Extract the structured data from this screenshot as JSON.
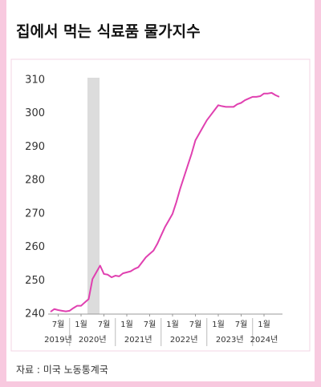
{
  "chart_data": {
    "type": "line",
    "title": "집에서 먹는 식료품 물가지수",
    "source": "자료 : 미국 노동통계국",
    "categories": [
      null,
      null,
      "7월",
      null,
      null,
      null,
      null,
      null,
      "1월",
      null,
      null,
      null,
      null,
      null,
      "7월",
      null,
      null,
      null,
      null,
      null,
      "1월",
      null,
      null,
      null,
      null,
      null,
      "7월",
      null,
      null,
      null,
      null,
      null,
      "1월",
      null,
      null,
      null,
      null,
      null,
      "7월",
      null,
      null,
      null,
      null,
      null,
      "1월",
      null,
      null,
      null,
      null,
      null,
      "7월",
      null,
      null,
      null,
      null,
      null,
      "1월",
      null,
      null,
      null,
      null
    ],
    "years": [
      "2019년",
      "2020년",
      "2021년",
      "2022년",
      "2023년",
      "2024년"
    ],
    "series": [
      {
        "color": "#e040b0",
        "values": [
          240.7,
          241.5,
          241.2,
          241.0,
          240.8,
          241.0,
          241.8,
          242.5,
          242.5,
          243.5,
          244.5,
          250.5,
          252.5,
          254.5,
          252,
          251.8,
          251,
          251.5,
          251.3,
          252.2,
          252.5,
          252.8,
          253.5,
          254,
          255.5,
          257,
          258,
          259,
          261,
          263.5,
          266,
          268,
          270,
          273.5,
          277.5,
          281,
          284.5,
          288,
          292,
          294,
          296,
          298,
          299.5,
          301,
          302.5,
          302.2,
          302,
          302,
          302,
          302.8,
          303.2,
          304,
          304.5,
          305,
          305,
          305.2,
          306,
          306,
          306.2,
          305.5,
          305
        ]
      }
    ],
    "ylim": [
      240,
      310
    ],
    "yticks": [
      240,
      250,
      260,
      270,
      280,
      290,
      300,
      310
    ]
  }
}
